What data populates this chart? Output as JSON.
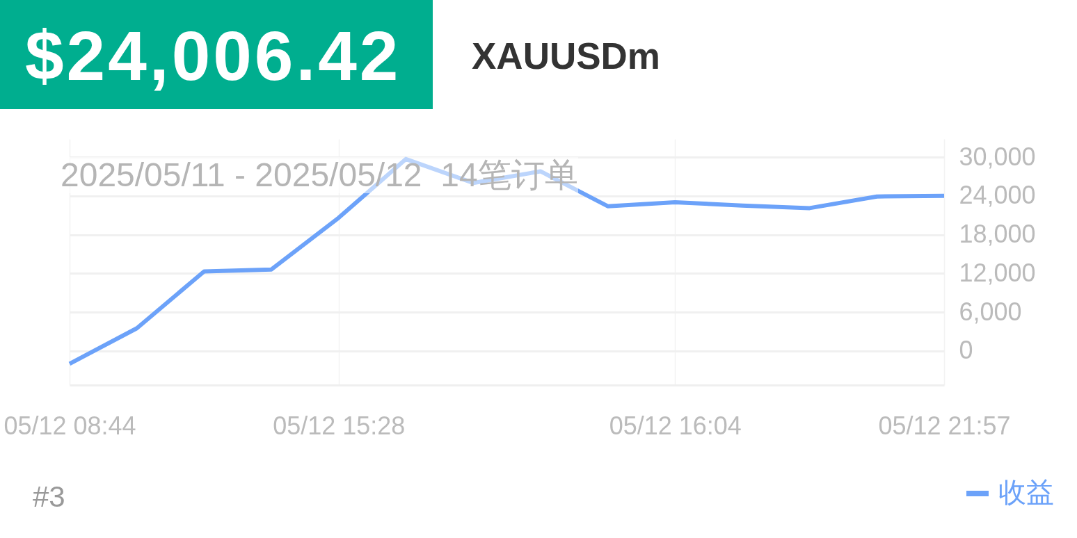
{
  "chart_data": {
    "type": "line",
    "title": "XAUUSDm",
    "subtitle": "2025/05/11 - 2025/05/12  14笔订单",
    "annotations": [
      "$24,006.42",
      "#3"
    ],
    "categories": [
      "05/12 08:44",
      null,
      null,
      null,
      "05/12 15:28",
      null,
      null,
      null,
      null,
      "05/12 16:04",
      null,
      null,
      null,
      "05/12 21:57"
    ],
    "series": [
      {
        "name": "收益",
        "color": "#6ca2f9",
        "values": [
          -2000,
          3500,
          12300,
          12600,
          20600,
          29700,
          26000,
          27800,
          22400,
          23000,
          22500,
          22100,
          23900,
          24000
        ]
      }
    ],
    "ylim": [
      -5300,
      32800
    ],
    "yticks": [
      {
        "value": 0,
        "label": "0"
      },
      {
        "value": 6000,
        "label": "6,000"
      },
      {
        "value": 12000,
        "label": "12,000"
      },
      {
        "value": 18000,
        "label": "18,000"
      },
      {
        "value": 24000,
        "label": "24,000"
      },
      {
        "value": 30000,
        "label": "30,000"
      }
    ],
    "grid": true,
    "legend": "bottom right",
    "line_style": "solid"
  }
}
